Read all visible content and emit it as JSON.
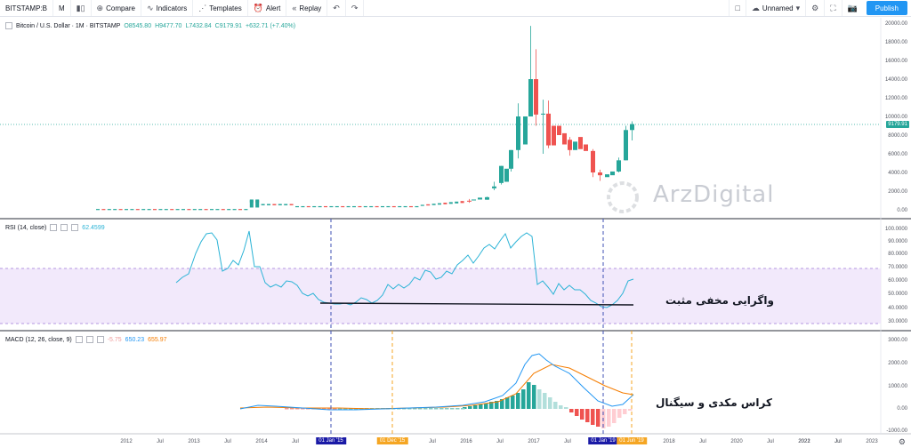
{
  "toolbar": {
    "symbol": "BITSTAMP:B",
    "interval": "M",
    "compare": "Compare",
    "indicators": "Indicators",
    "templates": "Templates",
    "alert": "Alert",
    "replay": "Replay",
    "layout_name": "Unnamed",
    "publish": "Publish"
  },
  "main_legend": {
    "title": "Bitcoin / U.S. Dollar · 1M · BITSTAMP",
    "open": "O8545.80",
    "high": "H9477.70",
    "low": "L7432.84",
    "close": "C9179.91",
    "change": "+632.71 (+7.40%)"
  },
  "rsi_legend": {
    "name": "RSI (14, close)",
    "value": "62.4599"
  },
  "macd_legend": {
    "name": "MACD (12, 26, close, 9)",
    "hist": "-5.75",
    "macd": "650.23",
    "signal": "655.97"
  },
  "last_price_tag": "9179.91",
  "price_axis": [
    "20000.00",
    "18000.00",
    "16000.00",
    "14000.00",
    "12000.00",
    "10000.00",
    "8000.00",
    "6000.00",
    "4000.00",
    "2000.00",
    "0.00"
  ],
  "rsi_axis": [
    "100.0000",
    "90.0000",
    "80.0000",
    "70.0000",
    "60.0000",
    "50.0000",
    "40.0000",
    "30.0000"
  ],
  "macd_axis": [
    "3000.00",
    "2000.00",
    "1000.00",
    "0.00",
    "-1000.00"
  ],
  "time_axis": [
    "2012",
    "Jul",
    "2013",
    "Jul",
    "2014",
    "Jul",
    "Jul",
    "2016",
    "Jul",
    "2017",
    "Jul",
    "2018",
    "Jul",
    "2020",
    "Jul",
    "2021",
    "Jul",
    "2022",
    "Jul",
    "2023"
  ],
  "markers": [
    "01 Jan '15",
    "01 Dec '15",
    "01 Jan '19",
    "01 Jun '19"
  ],
  "annotations": {
    "rsi_text": "واگرایی مخفی مثبت",
    "macd_text": "کراس مکدی و سیگنال"
  },
  "watermark": "ArzDigital",
  "colors": {
    "up": "#26a69a",
    "down": "#ef5350",
    "rsi": "#2bb3d6",
    "macd": "#2196f3",
    "signal": "#f57c00",
    "marker_blue": "#1a1aa6",
    "marker_orange": "#f5a623"
  },
  "chart_data": {
    "type": "candlestick",
    "candles_2017_2019": [
      {
        "t": "2017-01",
        "o": 970,
        "h": 1150,
        "l": 750,
        "c": 965
      },
      {
        "t": "2017-04",
        "o": 1080,
        "h": 1400,
        "l": 1070,
        "c": 1350
      },
      {
        "t": "2017-06",
        "o": 2300,
        "h": 3000,
        "l": 2100,
        "c": 2500
      },
      {
        "t": "2017-08",
        "o": 2870,
        "h": 4700,
        "l": 2700,
        "c": 4700
      },
      {
        "t": "2017-10",
        "o": 4400,
        "h": 6400,
        "l": 4100,
        "c": 6400
      },
      {
        "t": "2017-11",
        "o": 6400,
        "h": 11400,
        "l": 5500,
        "c": 10000
      },
      {
        "t": "2017-12",
        "o": 10000,
        "h": 19700,
        "l": 10000,
        "c": 14000
      },
      {
        "t": "2018-01",
        "o": 14000,
        "h": 17200,
        "l": 9000,
        "c": 10200
      },
      {
        "t": "2018-02",
        "o": 10200,
        "h": 11800,
        "l": 6000,
        "c": 10300
      },
      {
        "t": "2018-03",
        "o": 10300,
        "h": 11700,
        "l": 6600,
        "c": 6900
      },
      {
        "t": "2018-06",
        "o": 7500,
        "h": 7800,
        "l": 5800,
        "c": 6400
      },
      {
        "t": "2018-11",
        "o": 6300,
        "h": 6500,
        "l": 3500,
        "c": 4000
      },
      {
        "t": "2018-12",
        "o": 4000,
        "h": 4300,
        "l": 3100,
        "c": 3700
      },
      {
        "t": "2019-04",
        "o": 4100,
        "h": 5600,
        "l": 4000,
        "c": 5300
      },
      {
        "t": "2019-05",
        "o": 5300,
        "h": 9000,
        "l": 5300,
        "c": 8545
      },
      {
        "t": "2019-06",
        "o": 8545.8,
        "h": 9477.7,
        "l": 7432.84,
        "c": 9179.91
      }
    ]
  }
}
